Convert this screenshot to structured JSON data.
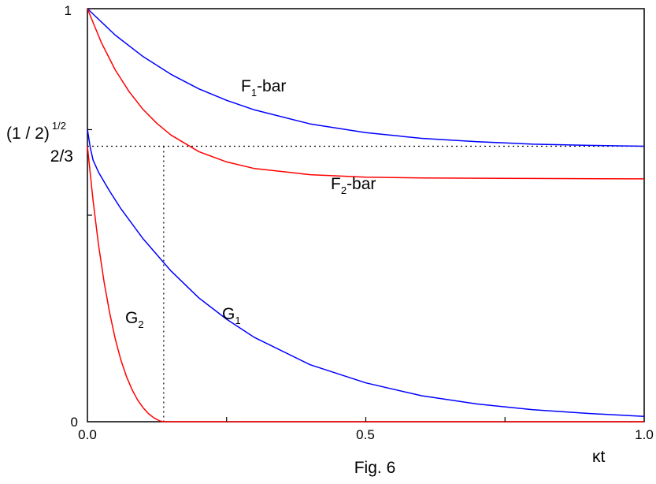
{
  "chart_data": {
    "type": "line",
    "caption": "Fig. 6",
    "xlabel": "κt",
    "xlim": [
      0,
      1
    ],
    "ylim": [
      0,
      1
    ],
    "x_ticks": [
      {
        "value": 0,
        "label": "0.0"
      },
      {
        "value": 0.5,
        "label": "0.5"
      },
      {
        "value": 1,
        "label": "1.0"
      }
    ],
    "y_ticks": [
      {
        "value": 0,
        "label": "0"
      },
      {
        "value": 1,
        "label": "1"
      }
    ],
    "y_marks": {
      "sqrt_half": {
        "value": 0.7071,
        "label": "(1 / 2)",
        "superscript": "1/2"
      },
      "two_thirds": {
        "value": 0.6667,
        "label": "2/3"
      }
    },
    "series": [
      {
        "name": "F1-bar",
        "label_main": "F",
        "label_sub": "1",
        "label_tail": "-bar",
        "color": "#0000ff",
        "x": [
          0,
          0.05,
          0.1,
          0.15,
          0.2,
          0.25,
          0.3,
          0.4,
          0.5,
          0.6,
          0.7,
          0.8,
          0.9,
          1.0
        ],
        "values": [
          1.0,
          0.936,
          0.884,
          0.841,
          0.806,
          0.778,
          0.755,
          0.721,
          0.7,
          0.686,
          0.678,
          0.672,
          0.669,
          0.667
        ]
      },
      {
        "name": "F2-bar",
        "label_main": "F",
        "label_sub": "2",
        "label_tail": "-bar",
        "color": "#ff0000",
        "x": [
          0,
          0.025,
          0.05,
          0.075,
          0.1,
          0.125,
          0.15,
          0.2,
          0.25,
          0.3,
          0.4,
          0.5,
          0.6,
          0.8,
          1.0
        ],
        "values": [
          1.0,
          0.918,
          0.852,
          0.799,
          0.756,
          0.722,
          0.694,
          0.654,
          0.629,
          0.613,
          0.598,
          0.592,
          0.59,
          0.589,
          0.588
        ]
      },
      {
        "name": "G1",
        "label_main": "G",
        "label_sub": "1",
        "label_tail": "",
        "color": "#0000ff",
        "x": [
          0,
          0.005,
          0.01,
          0.02,
          0.04,
          0.06,
          0.1,
          0.15,
          0.2,
          0.25,
          0.3,
          0.4,
          0.5,
          0.6,
          0.7,
          0.8,
          0.9,
          1.0
        ],
        "values": [
          0.708,
          0.665,
          0.634,
          0.604,
          0.558,
          0.516,
          0.443,
          0.365,
          0.3,
          0.248,
          0.204,
          0.138,
          0.094,
          0.063,
          0.043,
          0.029,
          0.02,
          0.013
        ]
      },
      {
        "name": "G2",
        "label_main": "G",
        "label_sub": "2",
        "label_tail": "",
        "color": "#ff0000",
        "x": [
          0,
          0.01,
          0.02,
          0.03,
          0.04,
          0.05,
          0.06,
          0.07,
          0.08,
          0.09,
          0.1,
          0.11,
          0.12,
          0.13,
          0.137,
          0.2,
          0.4,
          0.6,
          0.8,
          1.0
        ],
        "values": [
          0.667,
          0.537,
          0.428,
          0.338,
          0.263,
          0.201,
          0.15,
          0.11,
          0.078,
          0.053,
          0.034,
          0.019,
          0.009,
          0.002,
          0.0,
          0.0,
          0.0,
          0.0,
          0.0,
          0.0
        ]
      }
    ],
    "reference_lines": {
      "y": 0.667,
      "x": 0.137
    },
    "grid": false,
    "legend": "labels placed next to curves"
  }
}
